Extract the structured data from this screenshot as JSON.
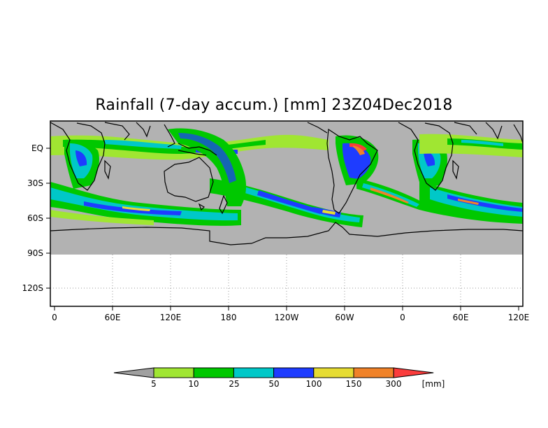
{
  "title": "Rainfall (7-day accum.) [mm] 23Z04Dec2018",
  "map": {
    "y_ticks": [
      "EQ",
      "30S",
      "60S",
      "90S",
      "120S"
    ],
    "x_ticks": [
      "0",
      "60E",
      "120E",
      "180",
      "120W",
      "60W",
      "0",
      "60E",
      "120E"
    ],
    "land_color": "#b2b2b2",
    "ocean_dry_color": "#b2b2b2",
    "no_data_color": "#ffffff"
  },
  "legend": {
    "values": [
      "5",
      "10",
      "25",
      "50",
      "100",
      "150",
      "300"
    ],
    "unit": "[mm]",
    "colors": [
      "#a0a0a0",
      "#a0e632",
      "#00c800",
      "#00c8c8",
      "#1e3cff",
      "#e6dc32",
      "#f08228",
      "#fa3c3c"
    ]
  }
}
